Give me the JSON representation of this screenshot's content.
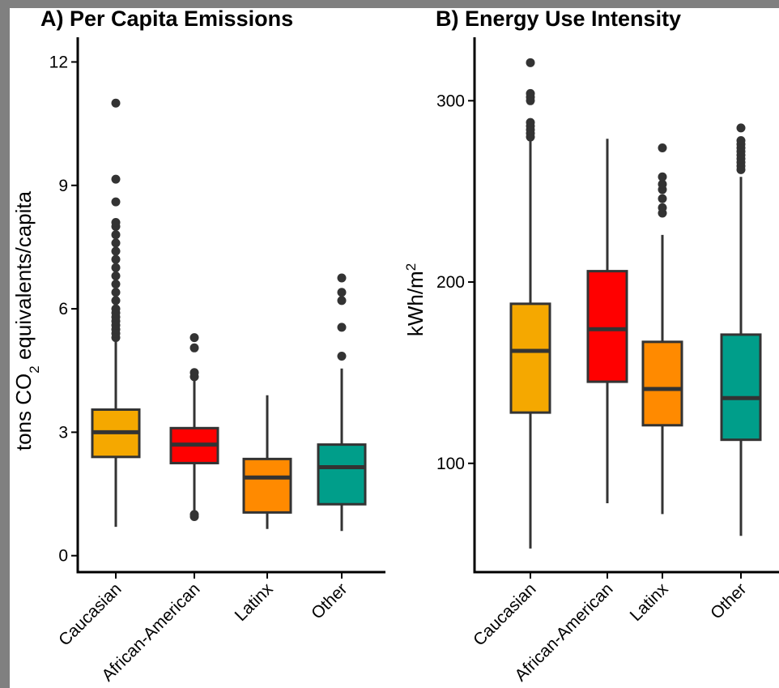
{
  "chart_data": [
    {
      "type": "box",
      "title": "A) Per Capita Emissions",
      "ylabel_parts": {
        "pre": "tons CO",
        "sub": "2",
        "post": " equivalents/capita"
      },
      "categories": [
        "Caucasian",
        "African-American",
        "Latinx",
        "Other"
      ],
      "colors": [
        "#F5A800",
        "#FF0000",
        "#FF8A00",
        "#009E8A"
      ],
      "ylim": [
        -0.4,
        12.6
      ],
      "yticks": [
        0,
        3,
        6,
        9,
        12
      ],
      "ytick_labels": [
        "0",
        "3",
        "6",
        "9",
        "12"
      ],
      "boxes": [
        {
          "whisker_low": 0.7,
          "q1": 2.4,
          "median": 3.0,
          "q3": 3.55,
          "whisker_high": 5.2,
          "outliers": [
            5.3,
            5.4,
            5.5,
            5.6,
            5.7,
            5.8,
            5.9,
            6.0,
            6.2,
            6.4,
            6.6,
            6.8,
            7.0,
            7.2,
            7.4,
            7.6,
            7.8,
            8.0,
            8.1,
            8.6,
            9.15,
            11.0
          ]
        },
        {
          "whisker_low": 0.95,
          "q1": 2.25,
          "median": 2.7,
          "q3": 3.1,
          "whisker_high": 4.25,
          "outliers": [
            0.95,
            1.0,
            4.35,
            4.45,
            5.05,
            5.3
          ]
        },
        {
          "whisker_low": 0.65,
          "q1": 1.05,
          "median": 1.9,
          "q3": 2.35,
          "whisker_high": 3.9,
          "outliers": []
        },
        {
          "whisker_low": 0.6,
          "q1": 1.25,
          "median": 2.15,
          "q3": 2.7,
          "whisker_high": 4.55,
          "outliers": [
            4.85,
            5.55,
            6.2,
            6.4,
            6.75
          ]
        }
      ]
    },
    {
      "type": "box",
      "title": "B) Energy Use Intensity",
      "ylabel_parts": {
        "pre": "kWh/m",
        "sup": "2"
      },
      "categories": [
        "Caucasian",
        "African-American",
        "Latinx",
        "Other"
      ],
      "colors": [
        "#F5A800",
        "#FF0000",
        "#FF8A00",
        "#009E8A"
      ],
      "ylim": [
        40,
        335
      ],
      "yticks": [
        100,
        200,
        300
      ],
      "ytick_labels": [
        "100",
        "200",
        "300"
      ],
      "boxes": [
        {
          "whisker_low": 53,
          "q1": 128,
          "median": 162,
          "q3": 188,
          "whisker_high": 278,
          "outliers": [
            280,
            282,
            284,
            286,
            288,
            300,
            302,
            304,
            321
          ]
        },
        {
          "whisker_low": 78,
          "q1": 145,
          "median": 174,
          "q3": 206,
          "whisker_high": 279,
          "outliers": []
        },
        {
          "whisker_low": 72,
          "q1": 121,
          "median": 141,
          "q3": 167,
          "whisker_high": 226,
          "outliers": [
            238,
            241,
            246,
            251,
            254,
            258,
            274
          ]
        },
        {
          "whisker_low": 60,
          "q1": 113,
          "median": 136,
          "q3": 171,
          "whisker_high": 258,
          "outliers": [
            262,
            264,
            266,
            268,
            270,
            272,
            274,
            276,
            278,
            285
          ]
        }
      ]
    }
  ]
}
